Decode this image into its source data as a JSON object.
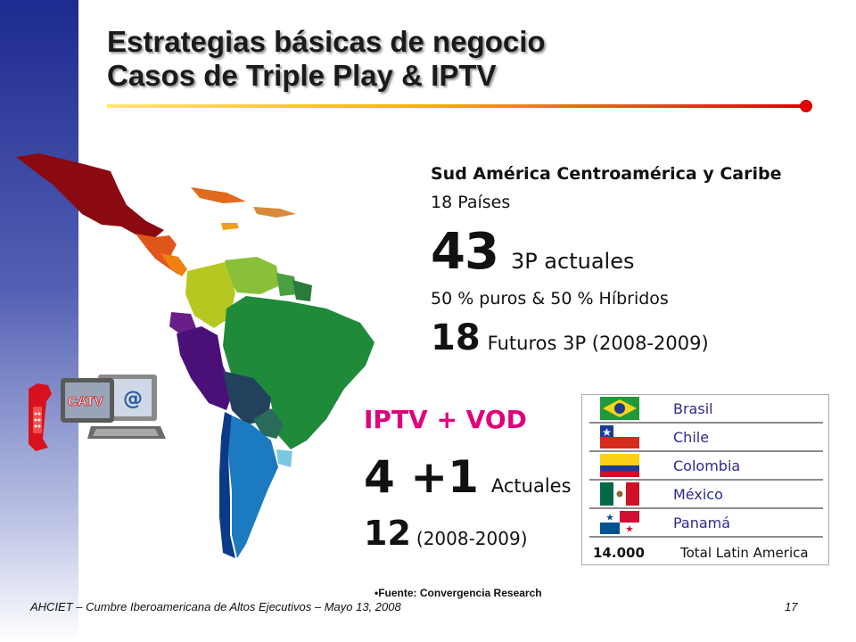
{
  "slide": {
    "title_line1": "Estrategias básicas de negocio",
    "title_line2": "Casos de Triple Play & IPTV"
  },
  "stats": {
    "region": "Sud América Centroamérica y Caribe",
    "countries_value": "18",
    "countries_label": "Países",
    "current_3p_value": "43",
    "current_3p_label": "3P actuales",
    "mix": "50 % puros & 50 % Híbridos",
    "future_3p_value": "18",
    "future_3p_label": "Futuros 3P (2008-2009)"
  },
  "iptv": {
    "title": "IPTV + VOD",
    "current_value": "4 +1",
    "current_label": "Actuales",
    "future_value": "12",
    "future_label": "(2008-2009)"
  },
  "device_illustration": {
    "tv_label": "CATV",
    "globe_symbol": "@"
  },
  "country_table": {
    "rows": [
      {
        "name": "Brasil",
        "flag": "brazil-flag-icon"
      },
      {
        "name": "Chile",
        "flag": "chile-flag-icon"
      },
      {
        "name": "Colombia",
        "flag": "colombia-flag-icon"
      },
      {
        "name": "México",
        "flag": "mexico-flag-icon"
      },
      {
        "name": "Panamá",
        "flag": "panama-flag-icon"
      }
    ],
    "total_value": "14.000",
    "total_label": "Total Latin America"
  },
  "source": "•Fuente: Convergencia Research",
  "footer": {
    "event": "AHCIET – Cumbre Iberoamericana de Altos Ejecutivos – Mayo 13, 2008",
    "page_number": "17"
  },
  "colors": {
    "accent_magenta": "#e0007a",
    "table_text": "#2b2b8c",
    "sidebar_blue": "#1d2a8f",
    "rule_red": "#e00000",
    "rule_yellow": "#ffea5a"
  }
}
